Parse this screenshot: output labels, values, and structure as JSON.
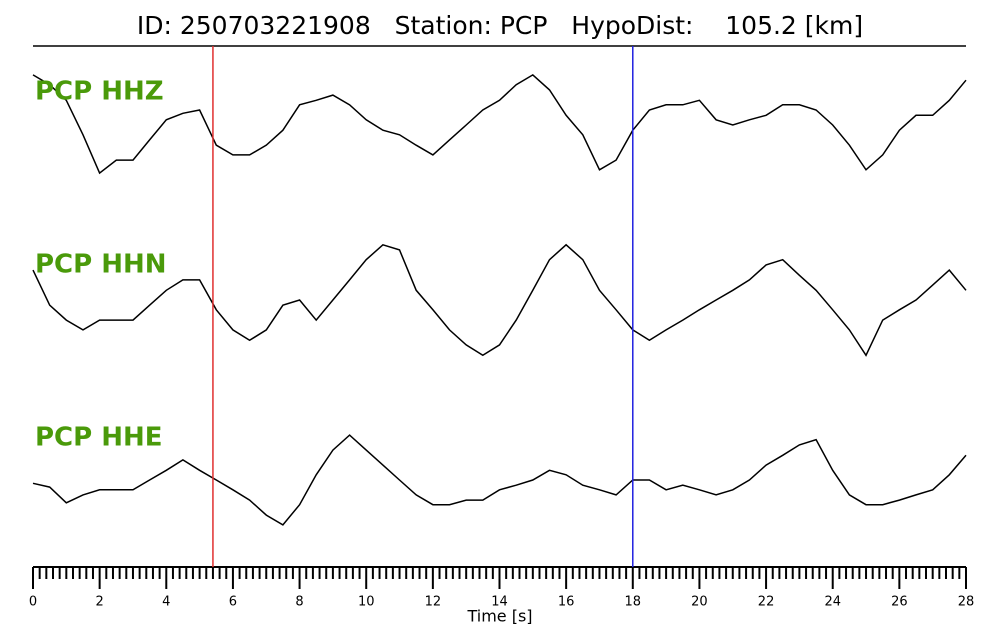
{
  "chart_data": {
    "type": "line",
    "title": "ID: 250703221908   Station: PCP   HypoDist:    105.2 [km]",
    "xlabel": "Time [s]",
    "xlim": [
      0,
      28
    ],
    "xticks": [
      0,
      2,
      4,
      6,
      8,
      10,
      12,
      14,
      16,
      18,
      20,
      22,
      24,
      26,
      28
    ],
    "xminor_step": 0.2,
    "ylim": [
      -1,
      1
    ],
    "label_color": "#4a9a0a",
    "markers": [
      {
        "x": 5.4,
        "color": "#e03030"
      },
      {
        "x": 18,
        "color": "#2020e0"
      }
    ],
    "x": [
      0,
      0.5,
      1,
      1.5,
      2,
      2.5,
      3,
      3.5,
      4,
      4.5,
      5,
      5.5,
      6,
      6.5,
      7,
      7.5,
      8,
      8.5,
      9,
      9.5,
      10,
      10.5,
      11,
      11.5,
      12,
      12.5,
      13,
      13.5,
      14,
      14.5,
      15,
      15.5,
      16,
      16.5,
      17,
      17.5,
      18,
      18.5,
      19,
      19.5,
      20,
      20.5,
      21,
      21.5,
      22,
      22.5,
      23,
      23.5,
      24,
      24.5,
      25,
      25.5,
      26,
      26.5,
      27,
      27.5,
      28
    ],
    "series": [
      {
        "name": "PCP HHZ",
        "color": "#000000",
        "values": [
          0.77,
          0.62,
          0.38,
          -0.15,
          -0.74,
          -0.54,
          -0.54,
          -0.23,
          0.08,
          0.18,
          0.23,
          -0.31,
          -0.46,
          -0.46,
          -0.31,
          -0.08,
          0.31,
          0.38,
          0.46,
          0.31,
          0.08,
          -0.08,
          -0.15,
          -0.31,
          -0.46,
          -0.23,
          0,
          0.23,
          0.38,
          0.62,
          0.77,
          0.54,
          0.15,
          -0.15,
          -0.69,
          -0.54,
          -0.08,
          0.23,
          0.31,
          0.31,
          0.38,
          0.08,
          0,
          0.08,
          0.15,
          0.31,
          0.31,
          0.23,
          0,
          -0.31,
          -0.69,
          -0.46,
          -0.08,
          0.15,
          0.15,
          0.38,
          0.69
        ]
      },
      {
        "name": "PCP HHN",
        "color": "#000000",
        "values": [
          0.46,
          -0.08,
          -0.31,
          -0.46,
          -0.31,
          -0.31,
          -0.31,
          -0.08,
          0.15,
          0.31,
          0.31,
          -0.15,
          -0.46,
          -0.62,
          -0.46,
          -0.08,
          0,
          -0.31,
          0,
          0.31,
          0.62,
          0.85,
          0.77,
          0.15,
          -0.15,
          -0.46,
          -0.69,
          -0.85,
          -0.69,
          -0.31,
          0.15,
          0.62,
          0.85,
          0.62,
          0.15,
          -0.15,
          -0.46,
          -0.62,
          -0.46,
          -0.31,
          -0.15,
          0,
          0.15,
          0.31,
          0.54,
          0.62,
          0.38,
          0.15,
          -0.15,
          -0.46,
          -0.85,
          -0.31,
          -0.15,
          0,
          0.23,
          0.46,
          0.15
        ]
      },
      {
        "name": "PCP HHE",
        "color": "#000000",
        "values": [
          -0.05,
          -0.11,
          -0.35,
          -0.23,
          -0.15,
          -0.15,
          -0.15,
          0,
          0.15,
          0.31,
          0.15,
          0,
          -0.15,
          -0.31,
          -0.54,
          -0.69,
          -0.38,
          0.08,
          0.46,
          0.69,
          0.46,
          0.23,
          0,
          -0.23,
          -0.38,
          -0.38,
          -0.31,
          -0.31,
          -0.15,
          -0.08,
          0,
          0.15,
          0.08,
          -0.08,
          -0.15,
          -0.23,
          0,
          0,
          -0.15,
          -0.08,
          -0.15,
          -0.23,
          -0.15,
          0,
          0.23,
          0.38,
          0.54,
          0.62,
          0.15,
          -0.23,
          -0.38,
          -0.38,
          -0.31,
          -0.23,
          -0.15,
          0.08,
          0.38
        ]
      }
    ]
  }
}
